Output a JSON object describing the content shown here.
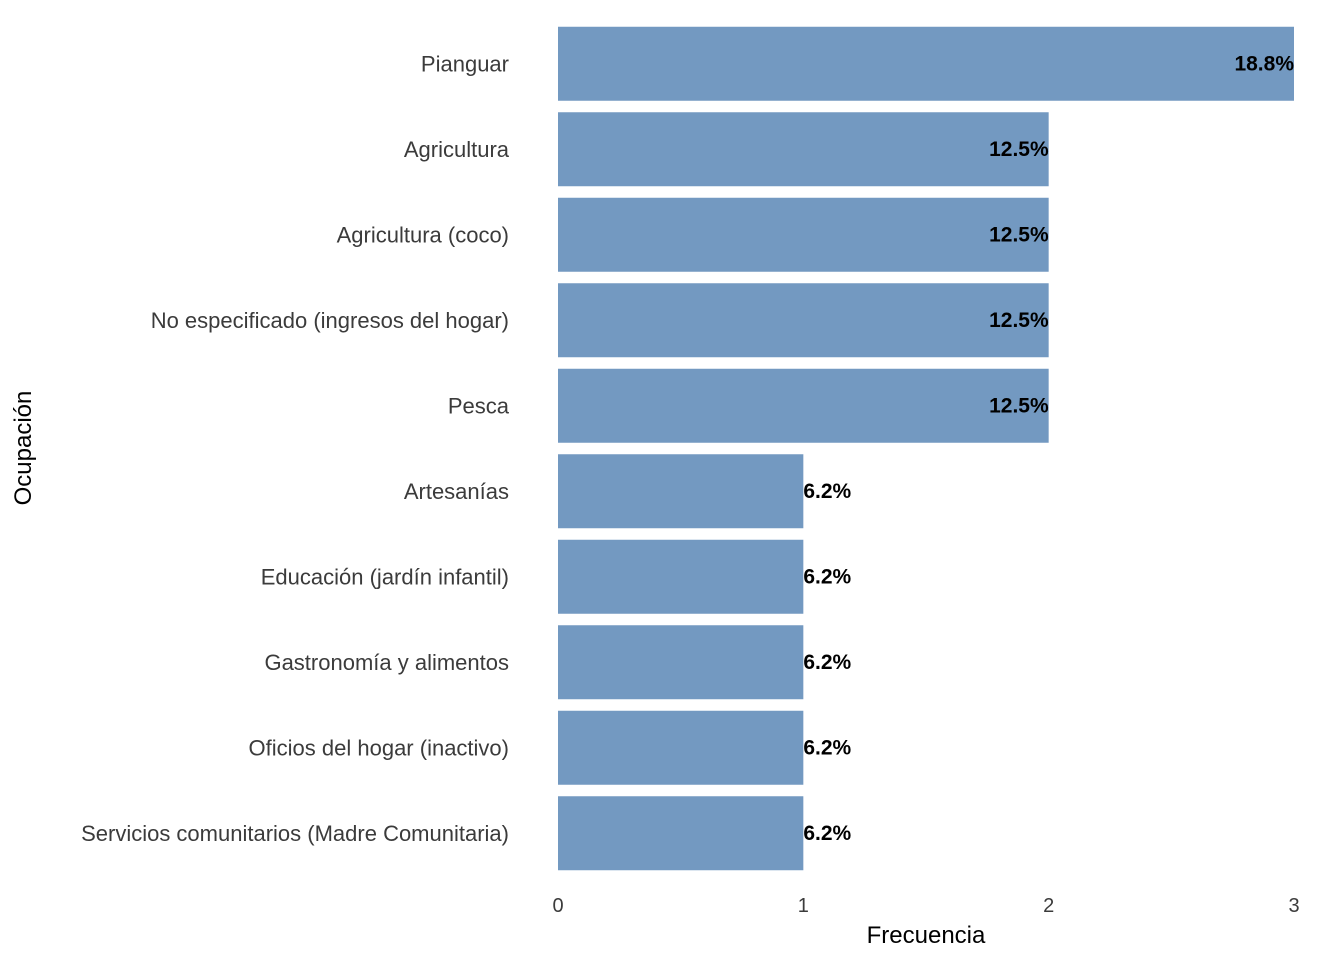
{
  "chart_data": {
    "type": "bar",
    "orientation": "horizontal",
    "xlabel": "Frecuencia",
    "ylabel": "Ocupación",
    "xlim": [
      0,
      3
    ],
    "x_ticks": [
      0,
      1,
      2,
      3
    ],
    "grid": false,
    "legend": "none",
    "bar_color": "#7399c1",
    "categories": [
      "Pianguar",
      "Agricultura",
      "Agricultura (coco)",
      "No especificado (ingresos del hogar)",
      "Pesca",
      "Artesanías",
      "Educación (jardín infantil)",
      "Gastronomía y alimentos",
      "Oficios del hogar (inactivo)",
      "Servicios comunitarios (Madre Comunitaria)"
    ],
    "values": [
      3,
      2,
      2,
      2,
      2,
      1,
      1,
      1,
      1,
      1
    ],
    "data_labels": [
      "18.8%",
      "12.5%",
      "12.5%",
      "12.5%",
      "12.5%",
      "6.2%",
      "6.2%",
      "6.2%",
      "6.2%",
      "6.2%"
    ]
  }
}
